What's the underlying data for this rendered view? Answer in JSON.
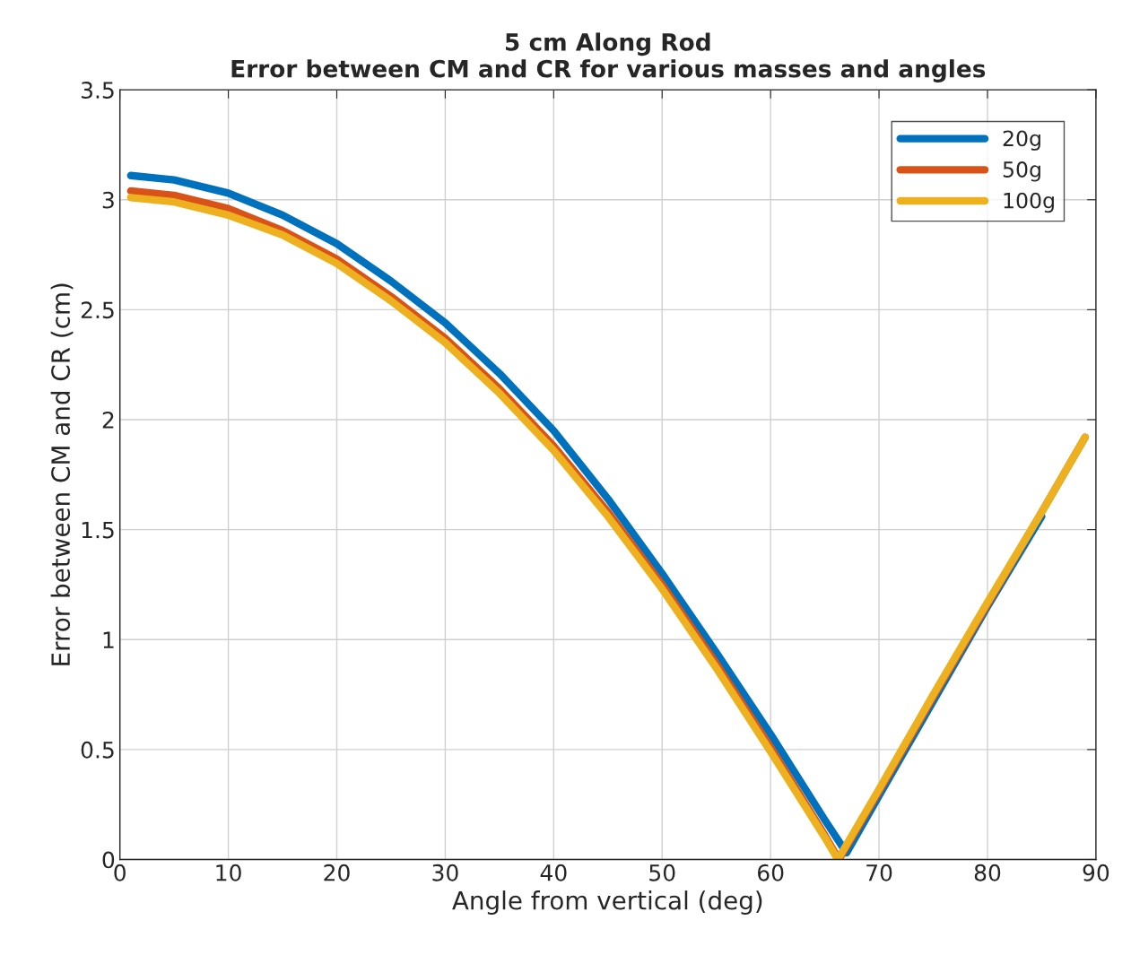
{
  "chart_data": {
    "type": "line",
    "title": "5 cm Along Rod",
    "subtitle": "Error between CM and CR for various masses and angles",
    "xlabel": "Angle from vertical (deg)",
    "ylabel": "Error between CM and CR (cm)",
    "xlim": [
      0,
      90
    ],
    "xticks": [
      0,
      10,
      20,
      30,
      40,
      50,
      60,
      70,
      80,
      90
    ],
    "ylim": [
      0,
      3.5
    ],
    "yticks": [
      0,
      0.5,
      1,
      1.5,
      2,
      2.5,
      3,
      3.5
    ],
    "grid": true,
    "legend": "top right",
    "line_style": "solid",
    "series": [
      {
        "name": "20g",
        "color": "#0072bd",
        "x": [
          1,
          5,
          10,
          15,
          20,
          25,
          30,
          35,
          40,
          45,
          50,
          55,
          60,
          65,
          67,
          70,
          75,
          80,
          85
        ],
        "values": [
          3.11,
          3.09,
          3.03,
          2.93,
          2.8,
          2.63,
          2.44,
          2.21,
          1.95,
          1.64,
          1.3,
          0.94,
          0.57,
          0.18,
          0.03,
          0.29,
          0.72,
          1.15,
          1.56
        ]
      },
      {
        "name": "50g",
        "color": "#d95319",
        "x": [
          1,
          5,
          10,
          15,
          20,
          25,
          30,
          35,
          40,
          45,
          50,
          55,
          60,
          65,
          66.3,
          70,
          75,
          80,
          85,
          89
        ],
        "values": [
          3.04,
          3.02,
          2.96,
          2.86,
          2.73,
          2.56,
          2.37,
          2.14,
          1.88,
          1.58,
          1.25,
          0.89,
          0.51,
          0.11,
          0.0,
          0.31,
          0.74,
          1.16,
          1.58,
          1.92
        ]
      },
      {
        "name": "100g",
        "color": "#edb120",
        "x": [
          1,
          5,
          10,
          15,
          20,
          25,
          30,
          35,
          40,
          45,
          50,
          55,
          60,
          65,
          66.2,
          70,
          75,
          80,
          85,
          89
        ],
        "values": [
          3.01,
          2.99,
          2.93,
          2.84,
          2.71,
          2.54,
          2.35,
          2.12,
          1.86,
          1.56,
          1.23,
          0.87,
          0.49,
          0.1,
          0.0,
          0.32,
          0.75,
          1.17,
          1.58,
          1.92
        ]
      }
    ]
  }
}
